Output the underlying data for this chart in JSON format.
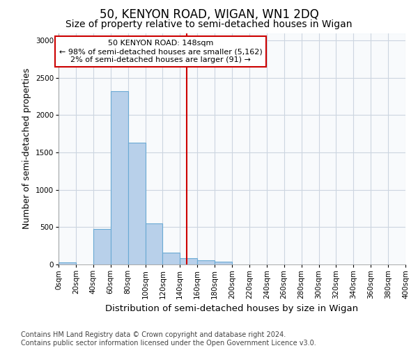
{
  "title": "50, KENYON ROAD, WIGAN, WN1 2DQ",
  "subtitle": "Size of property relative to semi-detached houses in Wigan",
  "xlabel": "Distribution of semi-detached houses by size in Wigan",
  "ylabel": "Number of semi-detached properties",
  "footer_line1": "Contains HM Land Registry data © Crown copyright and database right 2024.",
  "footer_line2": "Contains public sector information licensed under the Open Government Licence v3.0.",
  "bin_edges": [
    0,
    20,
    40,
    60,
    80,
    100,
    120,
    140,
    160,
    180,
    200,
    220,
    240,
    260,
    280,
    300,
    320,
    340,
    360,
    380,
    400
  ],
  "bar_values": [
    25,
    0,
    480,
    2320,
    1630,
    550,
    155,
    80,
    55,
    35,
    0,
    0,
    0,
    0,
    0,
    0,
    0,
    0,
    0,
    0
  ],
  "bar_color": "#b8d0ea",
  "bar_edgecolor": "#6aaad4",
  "property_size": 148,
  "annotation_text_line1": "50 KENYON ROAD: 148sqm",
  "annotation_text_line2": "← 98% of semi-detached houses are smaller (5,162)",
  "annotation_text_line3": "2% of semi-detached houses are larger (91) →",
  "vline_color": "#cc0000",
  "annotation_box_edgecolor": "#cc0000",
  "annotation_box_facecolor": "#ffffff",
  "ylim": [
    0,
    3100
  ],
  "yticks": [
    0,
    500,
    1000,
    1500,
    2000,
    2500,
    3000
  ],
  "xlim": [
    0,
    400
  ],
  "background_color": "#ffffff",
  "grid_color": "#ccd5e0",
  "title_fontsize": 12,
  "subtitle_fontsize": 10,
  "axis_label_fontsize": 9,
  "tick_fontsize": 7.5,
  "annotation_fontsize": 8,
  "footer_fontsize": 7
}
